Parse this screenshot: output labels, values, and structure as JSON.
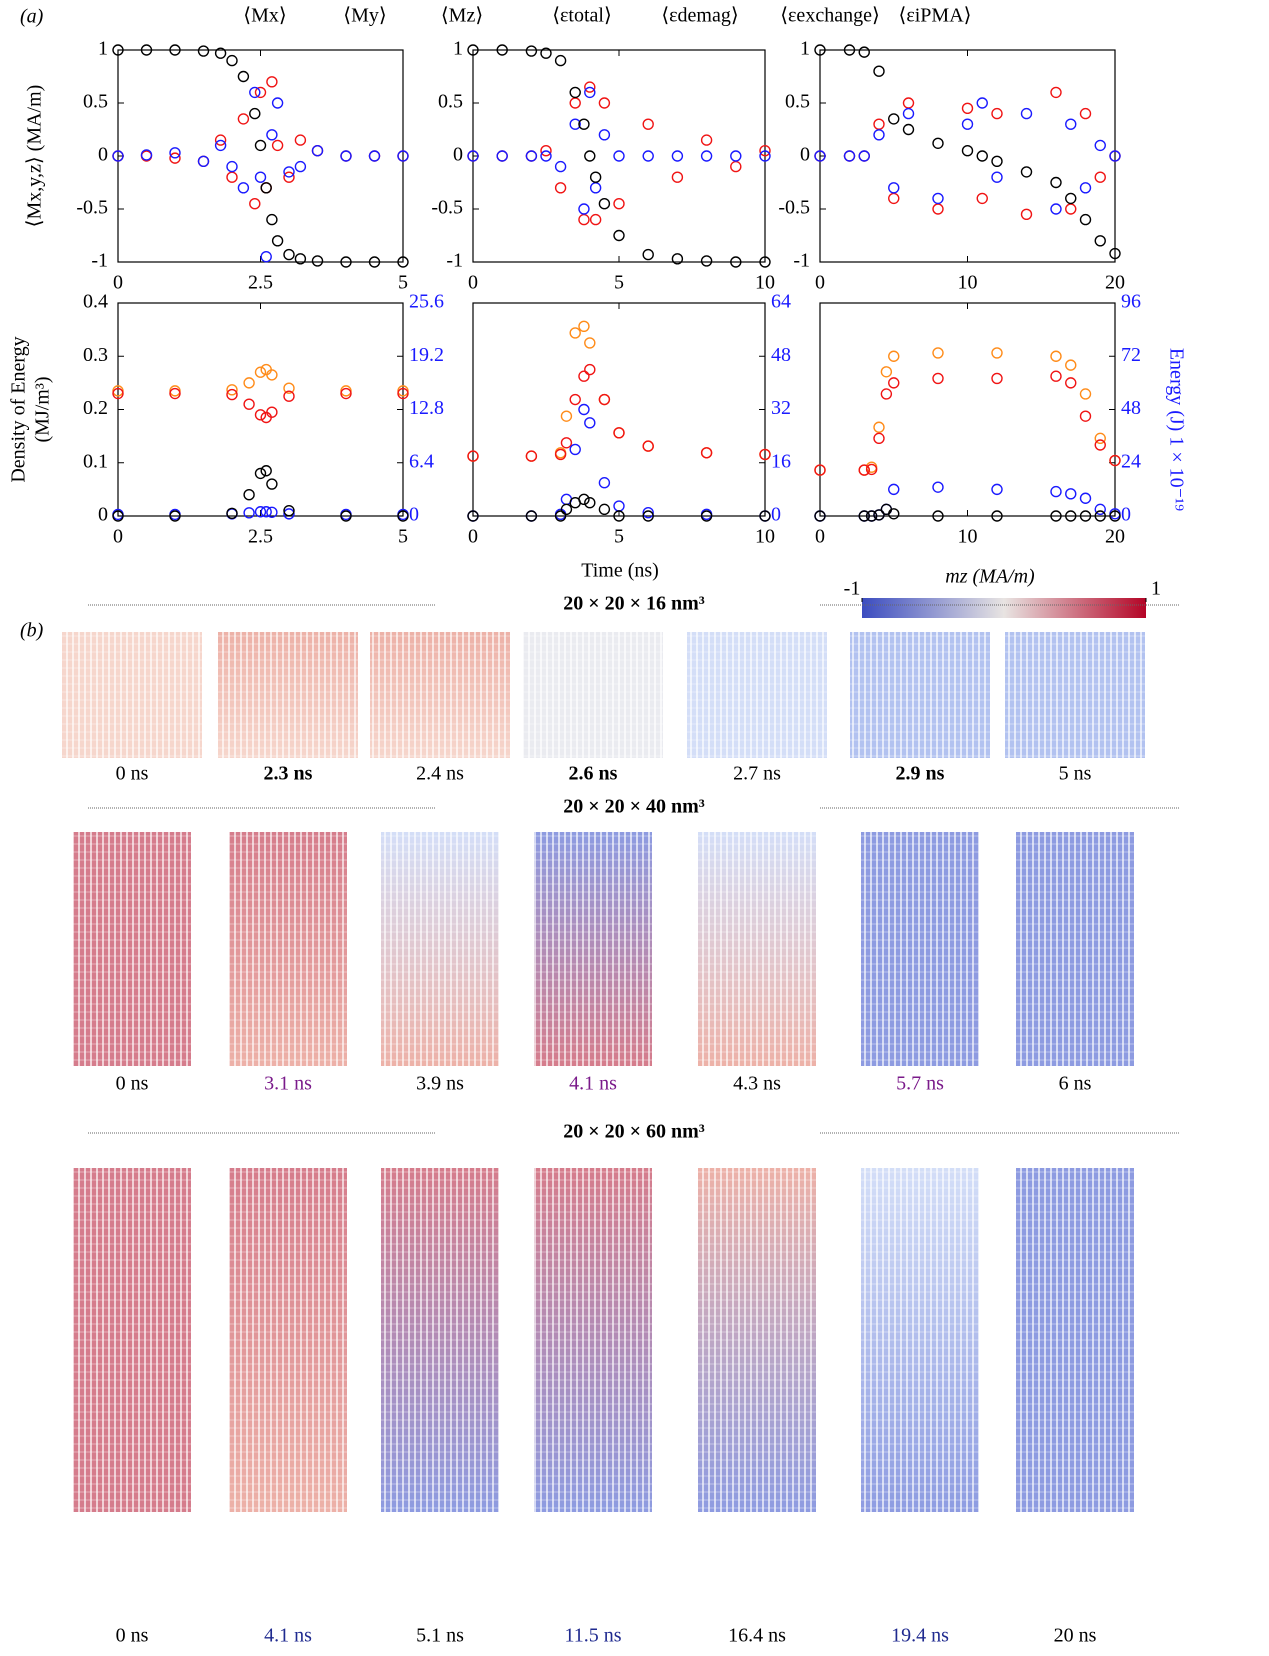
{
  "panel_labels": [
    "(a)",
    "(b)"
  ],
  "chart_data": [
    {
      "type": "scatter",
      "ylabel": "⟨Mx,y,z⟩ (MA/m)",
      "x": [
        0,
        0.5,
        1,
        1.5,
        1.8,
        2.0,
        2.2,
        2.4,
        2.5,
        2.6,
        2.7,
        2.8,
        3.0,
        3.2,
        3.5,
        4,
        4.5,
        5
      ],
      "series": [
        {
          "name": "⟨Mx⟩",
          "color": "#f01414",
          "values": [
            0,
            0,
            -0.02,
            -0.05,
            0.15,
            -0.2,
            0.35,
            -0.45,
            0.6,
            -0.3,
            0.7,
            0.1,
            -0.2,
            0.15,
            0.05,
            0,
            0,
            0
          ]
        },
        {
          "name": "⟨My⟩",
          "color": "#1a1aff",
          "values": [
            0,
            0.01,
            0.03,
            -0.05,
            0.1,
            -0.1,
            -0.3,
            0.6,
            -0.2,
            -0.95,
            0.2,
            0.5,
            -0.15,
            -0.1,
            0.05,
            0,
            0,
            0
          ]
        },
        {
          "name": "⟨Mz⟩",
          "color": "#000000",
          "values": [
            1,
            1,
            1,
            0.99,
            0.97,
            0.9,
            0.75,
            0.4,
            0.1,
            -0.3,
            -0.6,
            -0.8,
            -0.93,
            -0.97,
            -0.99,
            -1,
            -1,
            -1
          ]
        }
      ],
      "xlim": [
        0,
        5
      ],
      "xticks": [
        0,
        2.5,
        5
      ],
      "ylim": [
        -1,
        1
      ],
      "yticks": [
        -1,
        -0.5,
        0,
        0.5,
        1
      ]
    },
    {
      "type": "scatter",
      "x": [
        0,
        1,
        2,
        2.5,
        3,
        3.5,
        3.8,
        4,
        4.2,
        4.5,
        5,
        6,
        7,
        8,
        9,
        10
      ],
      "series": [
        {
          "color": "#f01414",
          "values": [
            0,
            0,
            0,
            0.05,
            -0.3,
            0.5,
            -0.6,
            0.65,
            -0.6,
            0.5,
            -0.45,
            0.3,
            -0.2,
            0.15,
            -0.1,
            0.05
          ]
        },
        {
          "color": "#1a1aff",
          "values": [
            0,
            0,
            0,
            0,
            -0.1,
            0.3,
            -0.5,
            0.6,
            -0.3,
            0.2,
            0,
            0,
            0,
            0,
            0,
            0
          ]
        },
        {
          "color": "#000000",
          "values": [
            1,
            1,
            0.99,
            0.97,
            0.9,
            0.6,
            0.3,
            0,
            -0.2,
            -0.45,
            -0.75,
            -0.93,
            -0.97,
            -0.99,
            -1,
            -1
          ]
        }
      ],
      "xlim": [
        0,
        10
      ],
      "xticks": [
        0,
        5,
        10
      ],
      "ylim": [
        -1,
        1
      ],
      "yticks": [
        -1,
        -0.5,
        0,
        0.5,
        1
      ]
    },
    {
      "type": "scatter",
      "x": [
        0,
        2,
        3,
        4,
        5,
        6,
        8,
        10,
        11,
        12,
        14,
        16,
        17,
        18,
        19,
        20
      ],
      "series": [
        {
          "color": "#f01414",
          "values": [
            0,
            0,
            0,
            0.3,
            -0.4,
            0.5,
            -0.5,
            0.45,
            -0.4,
            0.4,
            -0.55,
            0.6,
            -0.5,
            0.4,
            -0.2,
            0
          ]
        },
        {
          "color": "#1a1aff",
          "values": [
            0,
            0,
            0,
            0.2,
            -0.3,
            0.4,
            -0.4,
            0.3,
            0.5,
            -0.2,
            0.4,
            -0.5,
            0.3,
            -0.3,
            0.1,
            0
          ]
        },
        {
          "color": "#000000",
          "values": [
            1,
            1,
            0.98,
            0.8,
            0.35,
            0.25,
            0.12,
            0.05,
            0,
            -0.05,
            -0.15,
            -0.25,
            -0.4,
            -0.6,
            -0.8,
            -0.92
          ]
        }
      ],
      "xlim": [
        0,
        20
      ],
      "xticks": [
        0,
        10,
        20
      ],
      "ylim": [
        -1,
        1
      ],
      "yticks": [
        -1,
        -0.5,
        0,
        0.5,
        1
      ]
    },
    {
      "type": "scatter",
      "ylabel": [
        "Density of Energy",
        "(MJ/m³)"
      ],
      "x": [
        0,
        1,
        2,
        2.3,
        2.5,
        2.6,
        2.7,
        3,
        4,
        5
      ],
      "series": [
        {
          "name": "⟨εtotal⟩",
          "color": "#ff8c1a",
          "values": [
            0.235,
            0.235,
            0.237,
            0.25,
            0.27,
            0.275,
            0.265,
            0.24,
            0.235,
            0.235
          ]
        },
        {
          "name": "⟨εdemag⟩",
          "color": "#f01414",
          "values": [
            0.23,
            0.23,
            0.228,
            0.21,
            0.19,
            0.185,
            0.195,
            0.225,
            0.23,
            0.23
          ]
        },
        {
          "name": "⟨εexchange⟩",
          "color": "#1a1aff",
          "values": [
            0.003,
            0.003,
            0.004,
            0.006,
            0.008,
            0.008,
            0.007,
            0.004,
            0.003,
            0.003
          ]
        },
        {
          "name": "⟨εiPMA⟩",
          "color": "#000000",
          "values": [
            0,
            0,
            0.005,
            0.04,
            0.08,
            0.085,
            0.06,
            0.01,
            0,
            0
          ]
        }
      ],
      "xlim": [
        0,
        5
      ],
      "xticks": [
        0,
        2.5,
        5
      ],
      "ylim": [
        0,
        0.4
      ],
      "yticks": [
        0,
        0.1,
        0.2,
        0.3,
        0.4
      ],
      "y2lim": [
        0,
        25.6
      ],
      "y2ticks": [
        0,
        6.4,
        12.8,
        19.2,
        25.6
      ]
    },
    {
      "type": "scatter",
      "xlabel": "Time (ns)",
      "x": [
        0,
        2,
        3,
        3.2,
        3.5,
        3.8,
        4,
        4.5,
        5,
        6,
        8,
        10
      ],
      "series": [
        {
          "color": "#ff8c1a",
          "axis": "y2",
          "values": [
            18,
            18,
            19,
            30,
            55,
            57,
            52,
            35,
            25,
            21,
            19,
            18.5
          ]
        },
        {
          "color": "#f01414",
          "axis": "y2",
          "values": [
            18,
            18,
            18.5,
            22,
            35,
            42,
            44,
            35,
            25,
            21,
            19,
            18.5
          ]
        },
        {
          "color": "#1a1aff",
          "axis": "y2",
          "values": [
            0,
            0,
            0.5,
            5,
            20,
            32,
            28,
            10,
            3,
            1,
            0.5,
            0
          ]
        },
        {
          "color": "#000000",
          "axis": "y2",
          "values": [
            0,
            0,
            0,
            2,
            4,
            5,
            4,
            2,
            0,
            0,
            0,
            0
          ]
        }
      ],
      "xlim": [
        0,
        10
      ],
      "xticks": [
        0,
        5,
        10
      ],
      "y2lim": [
        0,
        64
      ],
      "y2ticks": [
        0,
        16,
        32,
        48,
        64
      ]
    },
    {
      "type": "scatter",
      "y2label": "Energy (J) 1 × 10⁻¹⁹",
      "x": [
        0,
        3,
        3.5,
        4,
        4.5,
        5,
        8,
        12,
        16,
        17,
        18,
        19,
        20
      ],
      "series": [
        {
          "color": "#ff8c1a",
          "axis": "y2",
          "values": [
            20.7,
            20.7,
            22,
            40,
            65,
            72,
            73.5,
            73.5,
            72,
            68,
            55,
            35,
            25
          ]
        },
        {
          "color": "#f01414",
          "axis": "y2",
          "values": [
            20.7,
            20.7,
            21,
            35,
            55,
            60,
            62,
            62,
            63,
            60,
            45,
            32,
            25
          ]
        },
        {
          "color": "#1a1aff",
          "axis": "y2",
          "values": [
            0,
            0,
            0,
            0.5,
            3,
            12,
            13,
            12,
            11,
            10,
            8,
            3,
            1
          ]
        },
        {
          "color": "#000000",
          "axis": "y2",
          "values": [
            0,
            0,
            0,
            0.5,
            3,
            1,
            0,
            0,
            0,
            0,
            0,
            0,
            0
          ]
        }
      ],
      "xlim": [
        0,
        20
      ],
      "xticks": [
        0,
        10,
        20
      ],
      "y2lim": [
        0,
        96
      ],
      "y2ticks": [
        0,
        24,
        48,
        72,
        96
      ]
    }
  ],
  "colorbar": {
    "label": "mz (MA/m)",
    "lim": [
      -1,
      1
    ],
    "ticks": [
      -1,
      1
    ]
  },
  "snapshots": [
    {
      "title": "20 × 20 × 16 nm³",
      "labels": [
        "0 ns",
        "2.3 ns",
        "2.4 ns",
        "2.6 ns",
        "2.7 ns",
        "2.9 ns",
        "5 ns"
      ]
    },
    {
      "title": "20 × 20 × 40 nm³",
      "labels": [
        "0 ns",
        "3.1 ns",
        "3.9 ns",
        "4.1 ns",
        "4.3 ns",
        "5.7 ns",
        "6 ns"
      ]
    },
    {
      "title": "20 × 20 × 60 nm³",
      "labels": [
        "0 ns",
        "4.1 ns",
        "5.1 ns",
        "11.5 ns",
        "16.4 ns",
        "19.4 ns",
        "20 ns"
      ]
    }
  ]
}
